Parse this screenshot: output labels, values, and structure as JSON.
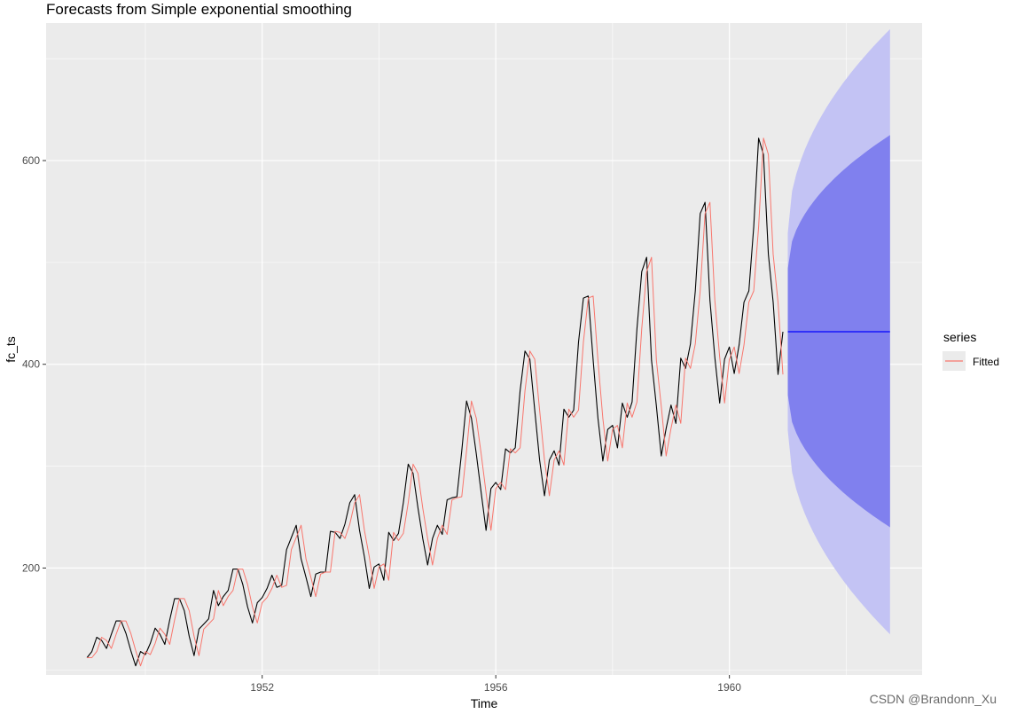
{
  "chart_data": {
    "type": "line",
    "title": "Forecasts from Simple exponential smoothing",
    "xlabel": "Time",
    "ylabel": "fc_ts",
    "xlim": [
      1948.3,
      1963.3
    ],
    "ylim": [
      95,
      735
    ],
    "x_ticks": [
      1952,
      1956,
      1960
    ],
    "y_ticks": [
      200,
      400,
      600
    ],
    "grid": true,
    "legend_title": "series",
    "legend_position": "right",
    "start": 1949,
    "frequency": 12,
    "series": [
      {
        "role": "observed",
        "color": "#000000",
        "values": [
          112,
          118,
          132,
          129,
          121,
          135,
          148,
          148,
          136,
          119,
          104,
          118,
          115,
          126,
          141,
          135,
          125,
          149,
          170,
          170,
          158,
          133,
          114,
          140,
          145,
          150,
          178,
          163,
          172,
          178,
          199,
          199,
          184,
          162,
          146,
          166,
          171,
          180,
          193,
          181,
          183,
          218,
          230,
          242,
          209,
          191,
          172,
          194,
          196,
          196,
          236,
          235,
          229,
          243,
          264,
          272,
          237,
          211,
          180,
          201,
          204,
          188,
          235,
          227,
          234,
          264,
          302,
          293,
          259,
          229,
          203,
          229,
          242,
          233,
          267,
          269,
          270,
          315,
          364,
          347,
          312,
          274,
          237,
          278,
          284,
          277,
          317,
          313,
          318,
          374,
          413,
          405,
          355,
          306,
          271,
          306,
          315,
          301,
          356,
          348,
          355,
          422,
          465,
          467,
          404,
          347,
          305,
          336,
          340,
          318,
          362,
          348,
          363,
          435,
          491,
          505,
          404,
          359,
          310,
          337,
          360,
          342,
          406,
          396,
          420,
          472,
          548,
          559,
          463,
          407,
          362,
          405,
          417,
          391,
          419,
          461,
          472,
          535,
          622,
          606,
          508,
          461,
          390,
          432
        ]
      },
      {
        "name": "Fitted",
        "color": "#f8766d",
        "values": [
          112,
          112,
          118,
          132,
          129,
          121,
          135,
          148,
          148,
          136,
          119,
          104,
          118,
          115,
          126,
          141,
          135,
          125,
          149,
          170,
          170,
          158,
          133,
          114,
          140,
          145,
          150,
          178,
          163,
          172,
          178,
          199,
          199,
          184,
          162,
          146,
          166,
          171,
          180,
          193,
          181,
          183,
          218,
          230,
          242,
          209,
          191,
          172,
          194,
          196,
          196,
          236,
          235,
          229,
          243,
          264,
          272,
          237,
          211,
          180,
          201,
          204,
          188,
          235,
          227,
          234,
          264,
          302,
          293,
          259,
          229,
          203,
          229,
          242,
          233,
          267,
          269,
          270,
          315,
          364,
          347,
          312,
          274,
          237,
          278,
          284,
          277,
          317,
          313,
          318,
          374,
          413,
          405,
          355,
          306,
          271,
          306,
          315,
          301,
          356,
          348,
          355,
          422,
          465,
          467,
          404,
          347,
          305,
          336,
          340,
          318,
          362,
          348,
          363,
          435,
          491,
          505,
          404,
          359,
          310,
          337,
          360,
          342,
          406,
          396,
          420,
          472,
          548,
          559,
          463,
          407,
          362,
          405,
          417,
          391,
          419,
          461,
          472,
          535,
          622,
          606,
          508,
          461,
          390
        ]
      }
    ],
    "forecast": {
      "start": 1961,
      "end": 1962.75,
      "point": 432,
      "color": "#0000ff",
      "band_80": {
        "lower": [
          370,
          240
        ],
        "upper": [
          494,
          625
        ],
        "color": "#8080ee"
      },
      "band_95": {
        "lower": [
          335,
          135
        ],
        "upper": [
          529,
          729
        ],
        "color": "#c3c3f4"
      }
    }
  },
  "watermark": "CSDN @Brandonn_Xu"
}
